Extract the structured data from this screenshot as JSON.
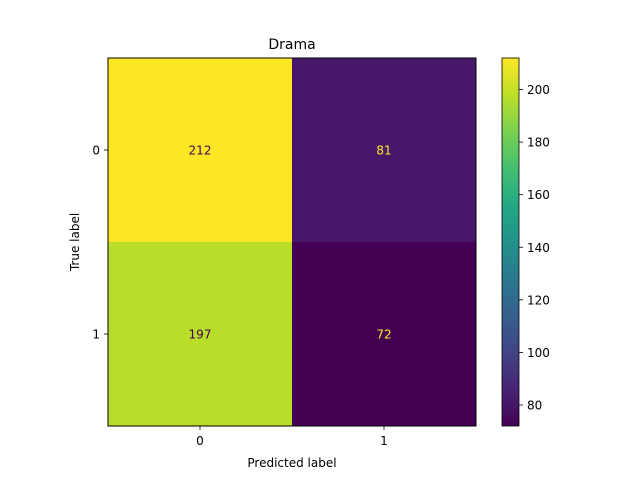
{
  "chart_data": {
    "type": "heatmap",
    "title": "Drama",
    "xlabel": "Predicted label",
    "ylabel": "True label",
    "x_categories": [
      "0",
      "1"
    ],
    "y_categories": [
      "0",
      "1"
    ],
    "values": [
      [
        212,
        81
      ],
      [
        197,
        72
      ]
    ],
    "colormap": "viridis",
    "colorbar": {
      "range": [
        72,
        212
      ],
      "ticks": [
        80,
        100,
        120,
        140,
        160,
        180,
        200
      ]
    }
  }
}
